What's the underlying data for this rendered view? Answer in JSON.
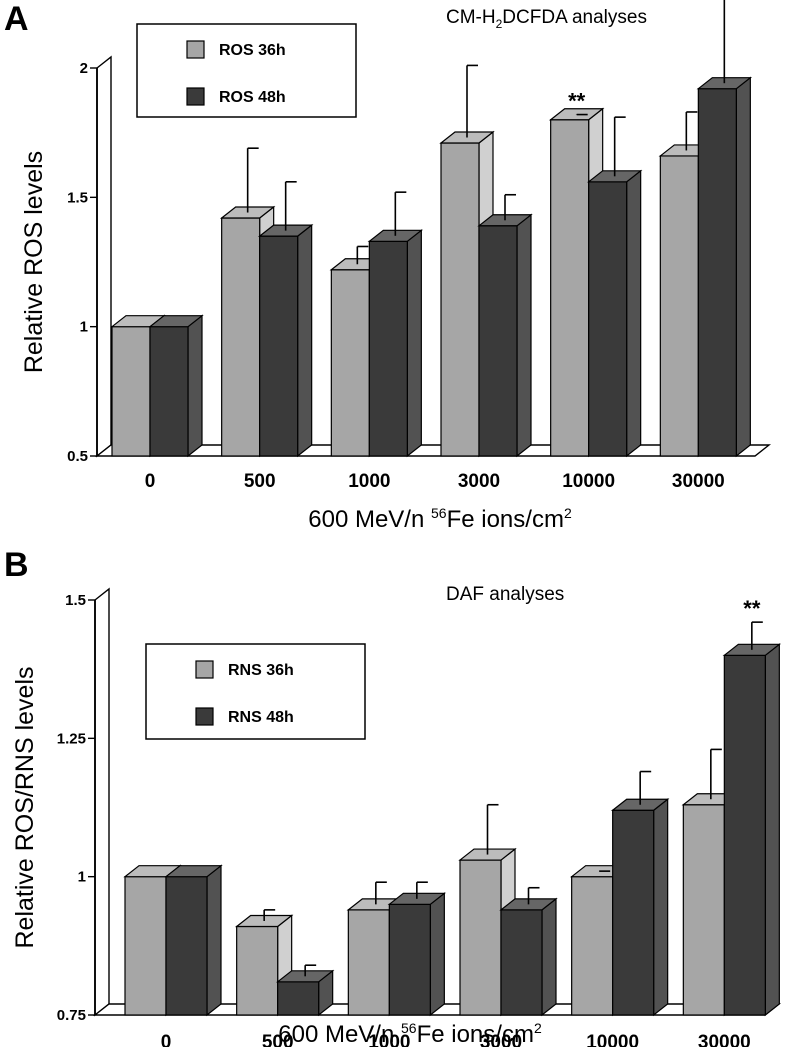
{
  "colors": {
    "light_bar": "#a6a6a6",
    "light_side": "#d0d0d0",
    "light_top": "#bcbcbc",
    "dark_bar": "#3a3a3a",
    "dark_side": "#525252",
    "dark_top": "#666666",
    "wall": "#ffffff",
    "axis": "#000000"
  },
  "chart_data": [
    {
      "panel_label": "A",
      "type": "bar",
      "title": "CM-H2DCFDA analyses",
      "title_parts": {
        "prefix": "CM-H",
        "subscript": "2",
        "suffix": "DCFDA analyses"
      },
      "xlabel": "600 MeV/n 56Fe ions/cm2",
      "xlabel_parts": {
        "prefix": "600 MeV/n ",
        "sup1": "56",
        "middle": "Fe ions/cm",
        "sup2": "2"
      },
      "ylabel": "Relative ROS levels",
      "ylim": [
        0.5,
        2
      ],
      "yticks": [
        "0.5",
        "1",
        "1.5",
        "2"
      ],
      "ytick_values": [
        0.5,
        1,
        1.5,
        2
      ],
      "categories": [
        "0",
        "500",
        "1000",
        "3000",
        "10000",
        "30000"
      ],
      "legend": {
        "placement": "top-left"
      },
      "series": [
        {
          "name": "ROS 36h",
          "values": [
            1.0,
            1.42,
            1.22,
            1.71,
            1.8,
            1.66
          ],
          "errors": [
            0,
            0.27,
            0.09,
            0.3,
            0.02,
            0.17
          ]
        },
        {
          "name": "ROS 48h",
          "values": [
            1.0,
            1.35,
            1.33,
            1.39,
            1.56,
            1.92
          ],
          "errors": [
            0,
            0.21,
            0.19,
            0.12,
            0.25,
            0.35
          ]
        }
      ],
      "annotations": [
        {
          "text": "**",
          "series": 0,
          "category": 4
        },
        {
          "text": "**",
          "series": 1,
          "category": 5
        }
      ]
    },
    {
      "panel_label": "B",
      "type": "bar",
      "title": "DAF analyses",
      "xlabel": "600 MeV/n 56Fe ions/cm2",
      "xlabel_parts": {
        "prefix": "600 MeV/n ",
        "sup1": "56",
        "middle": "Fe ions/cm",
        "sup2": "2"
      },
      "ylabel": "Relative ROS/RNS levels",
      "ylim": [
        0.75,
        1.5
      ],
      "yticks": [
        "0.75",
        "1",
        "1.25",
        "1.5"
      ],
      "ytick_values": [
        0.75,
        1,
        1.25,
        1.5
      ],
      "categories": [
        "0",
        "500",
        "1000",
        "3000",
        "10000",
        "30000"
      ],
      "legend": {
        "placement": "top-left"
      },
      "series": [
        {
          "name": "RNS 36h",
          "values": [
            1.0,
            0.91,
            0.94,
            1.03,
            1.0,
            1.13
          ],
          "errors": [
            0,
            0.03,
            0.05,
            0.1,
            0.01,
            0.1
          ]
        },
        {
          "name": "RNS 48h",
          "values": [
            1.0,
            0.81,
            0.95,
            0.94,
            1.12,
            1.4
          ],
          "errors": [
            0,
            0.03,
            0.04,
            0.04,
            0.07,
            0.06
          ]
        }
      ],
      "annotations": [
        {
          "text": "**",
          "series": 1,
          "category": 5
        }
      ]
    }
  ]
}
